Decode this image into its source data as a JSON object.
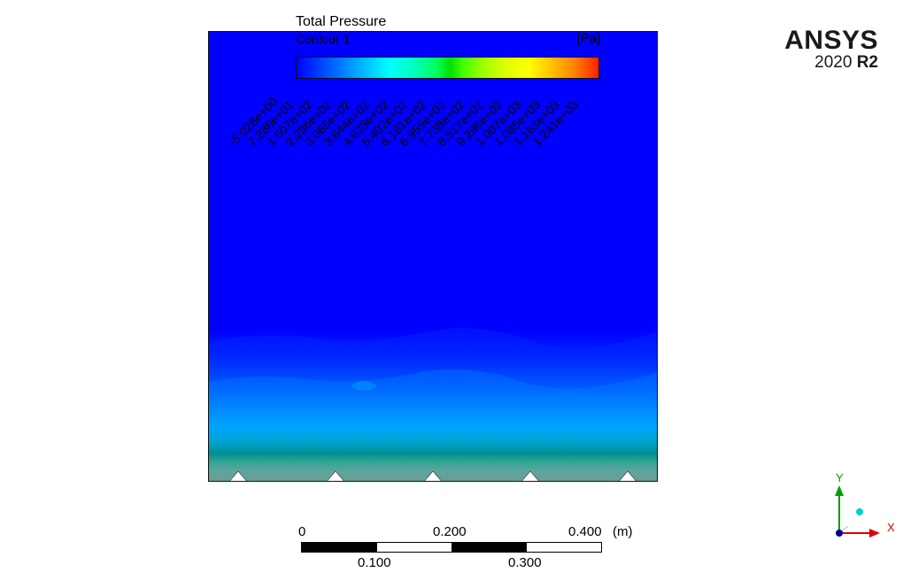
{
  "legend": {
    "title": "Total Pressure",
    "subtitle": "Contour 1",
    "unit": "[Pa]",
    "ticks": [
      "-5.028e+00",
      "7.286e+01",
      "1.507e+02",
      "2.286e+02",
      "3.065e+02",
      "3.844e+02",
      "4.623e+02",
      "5.402e+02",
      "6.181e+02",
      "6.959e+02",
      "7.738e+02",
      "8.517e+02",
      "9.296e+02",
      "1.007e+03",
      "1.085e+03",
      "1.163e+03",
      "1.241e+03"
    ]
  },
  "logo": {
    "brand": "ANSYS",
    "version_year": "2020",
    "version_release": "R2"
  },
  "scale": {
    "top_labels": [
      "0",
      "0.200",
      "0.400"
    ],
    "unit": "(m)",
    "bottom_labels": [
      "0.100",
      "0.300"
    ]
  },
  "triad": {
    "y_label": "Y",
    "x_label": "X",
    "colors": {
      "y_axis": "#00a000",
      "x_axis": "#e00000",
      "origin": "#00008b",
      "z_axis": "#00d0d0"
    }
  },
  "colors": {
    "background": "#ffffff",
    "low": "#0000ff",
    "high": "#ff2000"
  }
}
